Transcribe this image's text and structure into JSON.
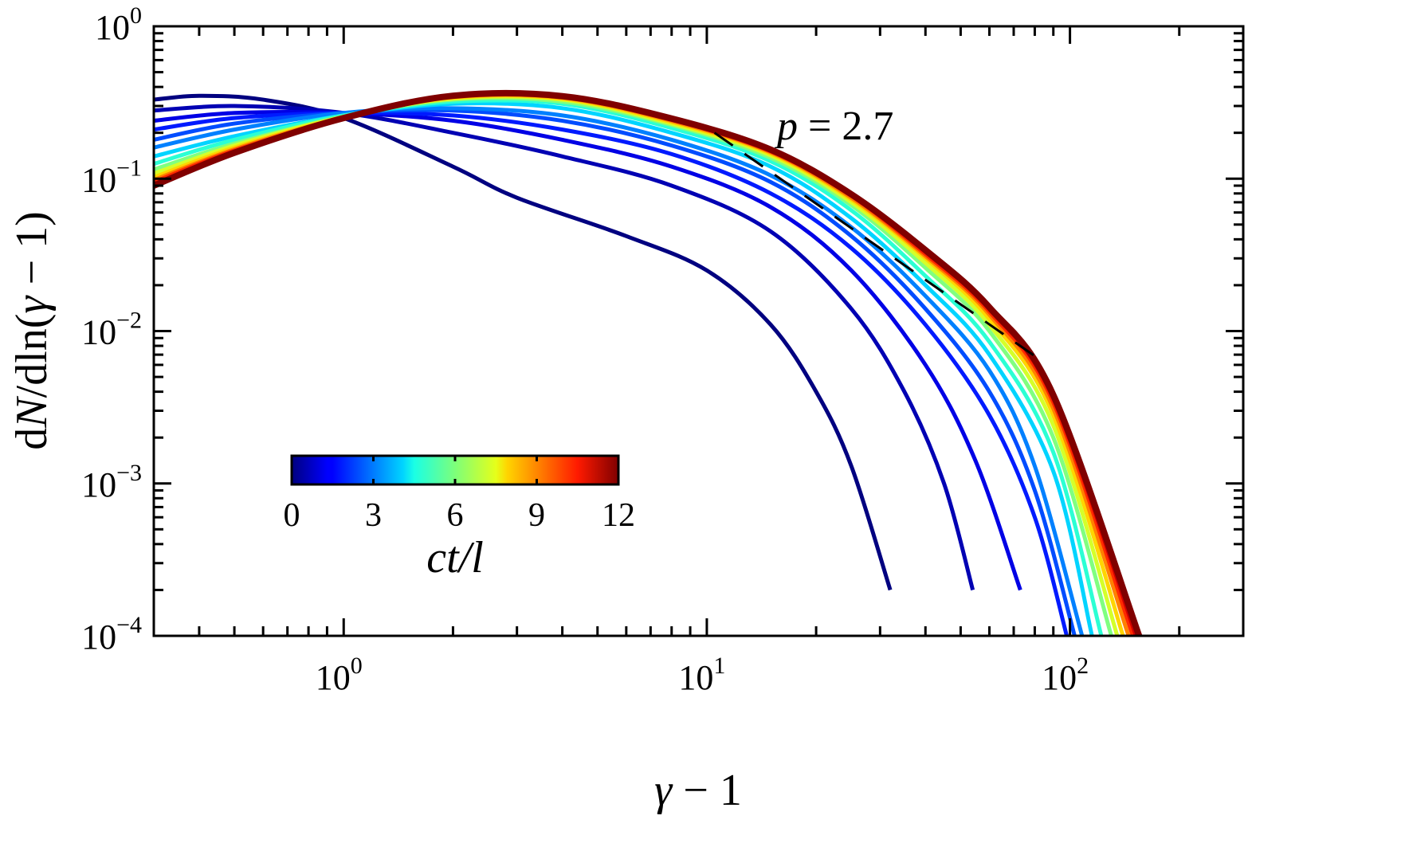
{
  "chart_data": {
    "type": "line",
    "title": "",
    "xlabel": "γ − 1",
    "ylabel": "dN/dln(γ − 1)",
    "xscale": "log",
    "yscale": "log",
    "xlim": [
      0.3,
      300
    ],
    "ylim": [
      0.0001,
      1
    ],
    "x_ticks": [
      {
        "value": 1,
        "base": "10",
        "exp": "0"
      },
      {
        "value": 10,
        "base": "10",
        "exp": "1"
      },
      {
        "value": 100,
        "base": "10",
        "exp": "2"
      }
    ],
    "y_ticks": [
      {
        "value": 1,
        "base": "10",
        "exp": "0"
      },
      {
        "value": 0.1,
        "base": "10",
        "exp": "−1"
      },
      {
        "value": 0.01,
        "base": "10",
        "exp": "−2"
      },
      {
        "value": 0.001,
        "base": "10",
        "exp": "−3"
      },
      {
        "value": 0.0001,
        "base": "10",
        "exp": "−4"
      }
    ],
    "grid": false,
    "colormap": "jet",
    "colorbar": {
      "label": "ct/l",
      "ticks": [
        "0",
        "3",
        "6",
        "9",
        "12"
      ],
      "range": [
        0,
        12
      ],
      "position": "lower-left inside plot"
    },
    "annotation": {
      "text_var": "p",
      "text_eq": " = 2.7",
      "reference_line": {
        "style": "dashed",
        "slope": -1.7,
        "x": [
          10.5,
          85
        ],
        "y": [
          0.2,
          0.0062
        ]
      }
    },
    "series": [
      {
        "name": "ct/l=0",
        "t": 0,
        "x": [
          0.3,
          0.4,
          0.6,
          1,
          2,
          3,
          6,
          10,
          15,
          20,
          25,
          32
        ],
        "y": [
          0.33,
          0.35,
          0.33,
          0.25,
          0.12,
          0.075,
          0.042,
          0.025,
          0.011,
          0.004,
          0.0013,
          0.0002
        ]
      },
      {
        "name": "ct/l=0.6",
        "t": 0.6,
        "x": [
          0.3,
          0.5,
          1,
          2,
          4,
          8,
          15,
          25,
          35,
          45,
          54
        ],
        "y": [
          0.28,
          0.3,
          0.27,
          0.2,
          0.14,
          0.09,
          0.045,
          0.014,
          0.004,
          0.001,
          0.0002
        ]
      },
      {
        "name": "ct/l=1.2",
        "t": 1.2,
        "x": [
          0.3,
          0.5,
          1,
          2,
          4,
          8,
          15,
          25,
          40,
          55,
          73
        ],
        "y": [
          0.24,
          0.27,
          0.27,
          0.24,
          0.18,
          0.12,
          0.065,
          0.025,
          0.006,
          0.0014,
          0.0002
        ]
      },
      {
        "name": "ct/l=1.8",
        "t": 1.8,
        "x": [
          0.3,
          0.5,
          1,
          2,
          4,
          8,
          15,
          25,
          40,
          60,
          80,
          98
        ],
        "y": [
          0.21,
          0.25,
          0.27,
          0.26,
          0.21,
          0.145,
          0.08,
          0.035,
          0.011,
          0.0028,
          0.0006,
          0.0001
        ]
      },
      {
        "name": "ct/l=2.4",
        "t": 2.4,
        "x": [
          0.3,
          0.5,
          1,
          2,
          4,
          8,
          15,
          25,
          40,
          60,
          80,
          103
        ],
        "y": [
          0.18,
          0.23,
          0.27,
          0.28,
          0.24,
          0.165,
          0.095,
          0.042,
          0.014,
          0.004,
          0.0009,
          0.0001
        ]
      },
      {
        "name": "ct/l=3",
        "t": 3,
        "x": [
          0.3,
          0.5,
          1,
          2,
          4,
          8,
          15,
          25,
          40,
          60,
          80,
          108
        ],
        "y": [
          0.16,
          0.21,
          0.27,
          0.29,
          0.26,
          0.18,
          0.105,
          0.048,
          0.017,
          0.0055,
          0.0013,
          0.0001
        ]
      },
      {
        "name": "ct/l=4",
        "t": 4,
        "x": [
          0.3,
          0.5,
          1,
          2,
          4,
          8,
          15,
          25,
          40,
          60,
          90,
          115
        ],
        "y": [
          0.14,
          0.19,
          0.26,
          0.31,
          0.29,
          0.2,
          0.12,
          0.055,
          0.02,
          0.007,
          0.0012,
          0.0001
        ]
      },
      {
        "name": "ct/l=5",
        "t": 5,
        "x": [
          0.3,
          0.5,
          1,
          2,
          4,
          8,
          15,
          25,
          40,
          60,
          90,
          122
        ],
        "y": [
          0.125,
          0.18,
          0.26,
          0.32,
          0.31,
          0.215,
          0.13,
          0.062,
          0.023,
          0.0085,
          0.0016,
          0.0001
        ]
      },
      {
        "name": "ct/l=6",
        "t": 6,
        "x": [
          0.3,
          0.5,
          1,
          2,
          4,
          8,
          15,
          25,
          40,
          60,
          90,
          130
        ],
        "y": [
          0.115,
          0.17,
          0.255,
          0.33,
          0.32,
          0.225,
          0.137,
          0.067,
          0.026,
          0.01,
          0.002,
          0.0001
        ]
      },
      {
        "name": "ct/l=7",
        "t": 7,
        "x": [
          0.3,
          0.5,
          1,
          2,
          4,
          8,
          15,
          25,
          40,
          60,
          90,
          135
        ],
        "y": [
          0.108,
          0.165,
          0.255,
          0.335,
          0.33,
          0.23,
          0.142,
          0.07,
          0.028,
          0.011,
          0.0024,
          0.0001
        ]
      },
      {
        "name": "ct/l=8",
        "t": 8,
        "x": [
          0.3,
          0.5,
          1,
          2,
          4,
          8,
          15,
          25,
          40,
          60,
          90,
          140
        ],
        "y": [
          0.102,
          0.16,
          0.252,
          0.34,
          0.335,
          0.235,
          0.146,
          0.073,
          0.03,
          0.012,
          0.0028,
          0.0001
        ]
      },
      {
        "name": "ct/l=9",
        "t": 9,
        "x": [
          0.3,
          0.5,
          1,
          2,
          4,
          8,
          15,
          25,
          40,
          60,
          90,
          145
        ],
        "y": [
          0.098,
          0.156,
          0.252,
          0.343,
          0.34,
          0.24,
          0.149,
          0.075,
          0.031,
          0.0128,
          0.0031,
          0.0001
        ]
      },
      {
        "name": "ct/l=10",
        "t": 10,
        "x": [
          0.3,
          0.5,
          1,
          2,
          4,
          8,
          15,
          25,
          40,
          60,
          90,
          149
        ],
        "y": [
          0.095,
          0.153,
          0.25,
          0.345,
          0.343,
          0.243,
          0.151,
          0.077,
          0.032,
          0.0134,
          0.0034,
          0.0001
        ]
      },
      {
        "name": "ct/l=11",
        "t": 11,
        "x": [
          0.3,
          0.5,
          1,
          2,
          4,
          8,
          15,
          25,
          40,
          60,
          90,
          152
        ],
        "y": [
          0.092,
          0.15,
          0.25,
          0.347,
          0.346,
          0.246,
          0.153,
          0.078,
          0.033,
          0.0139,
          0.0036,
          0.0001
        ]
      },
      {
        "name": "ct/l=12",
        "t": 12,
        "x": [
          0.3,
          0.5,
          1,
          2,
          4,
          8,
          15,
          25,
          40,
          60,
          90,
          155
        ],
        "y": [
          0.09,
          0.148,
          0.25,
          0.35,
          0.348,
          0.248,
          0.155,
          0.079,
          0.034,
          0.0143,
          0.0038,
          0.0001
        ]
      }
    ]
  },
  "labels": {
    "x_axis_var": "γ",
    "x_axis_rest": " − 1",
    "y_axis": "dN/dln(γ − 1)",
    "annot_var": "p",
    "annot_rest": " = 2.7",
    "colorbar_title": "ct/l"
  }
}
